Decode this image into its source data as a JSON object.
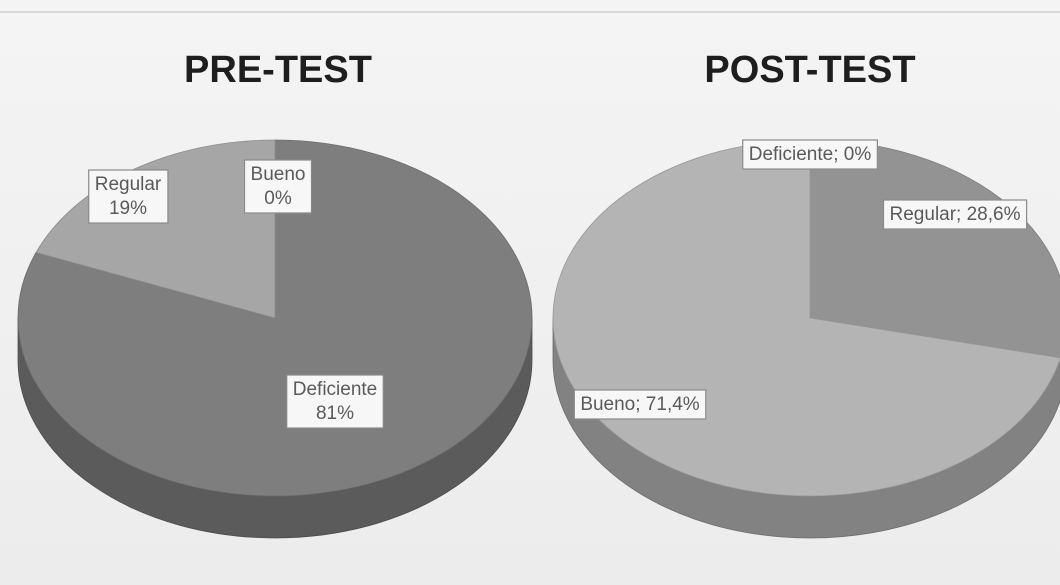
{
  "chart_data": [
    {
      "type": "pie",
      "title": "PRE-TEST",
      "categories": [
        "Deficiente",
        "Regular",
        "Bueno"
      ],
      "values": [
        81,
        19,
        0
      ],
      "value_labels": [
        "81%",
        "19%",
        "0%"
      ],
      "colors": [
        "#7e7e7e",
        "#a6a6a6",
        "#c8c8c8"
      ]
    },
    {
      "type": "pie",
      "title": "POST-TEST",
      "categories": [
        "Deficiente",
        "Regular",
        "Bueno"
      ],
      "values": [
        0,
        28.6,
        71.4
      ],
      "value_labels": [
        "Deficiente; 0%",
        "Regular; 28,6%",
        "Bueno; 71,4%"
      ],
      "colors": [
        "#7e7e7e",
        "#939393",
        "#b4b4b4"
      ]
    }
  ]
}
